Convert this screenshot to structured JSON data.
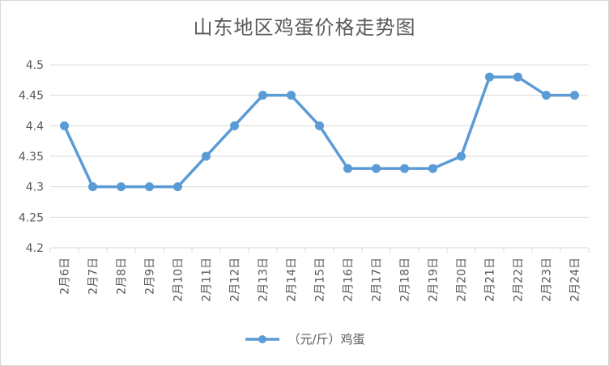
{
  "chart_data": {
    "type": "line",
    "title": "山东地区鸡蛋价格走势图",
    "xlabel": "",
    "ylabel": "",
    "categories": [
      "2月6日",
      "2月7日",
      "2月8日",
      "2月9日",
      "2月10日",
      "2月11日",
      "2月12日",
      "2月13日",
      "2月14日",
      "2月15日",
      "2月16日",
      "2月17日",
      "2月18日",
      "2月19日",
      "2月20日",
      "2月21日",
      "2月22日",
      "2月23日",
      "2月24日"
    ],
    "series": [
      {
        "name": "（元/斤）鸡蛋",
        "values": [
          4.4,
          4.3,
          4.3,
          4.3,
          4.3,
          4.35,
          4.4,
          4.45,
          4.45,
          4.4,
          4.33,
          4.33,
          4.33,
          4.33,
          4.35,
          4.48,
          4.48,
          4.45,
          4.45
        ]
      }
    ],
    "ylim": [
      4.2,
      4.5
    ],
    "yticks": [
      "4.2",
      "4.25",
      "4.3",
      "4.35",
      "4.4",
      "4.45",
      "4.5"
    ],
    "grid": true,
    "legend_position": "bottom",
    "series_color": "#5b9bd5",
    "grid_color": "#d9d9d9",
    "text_color": "#595959"
  }
}
